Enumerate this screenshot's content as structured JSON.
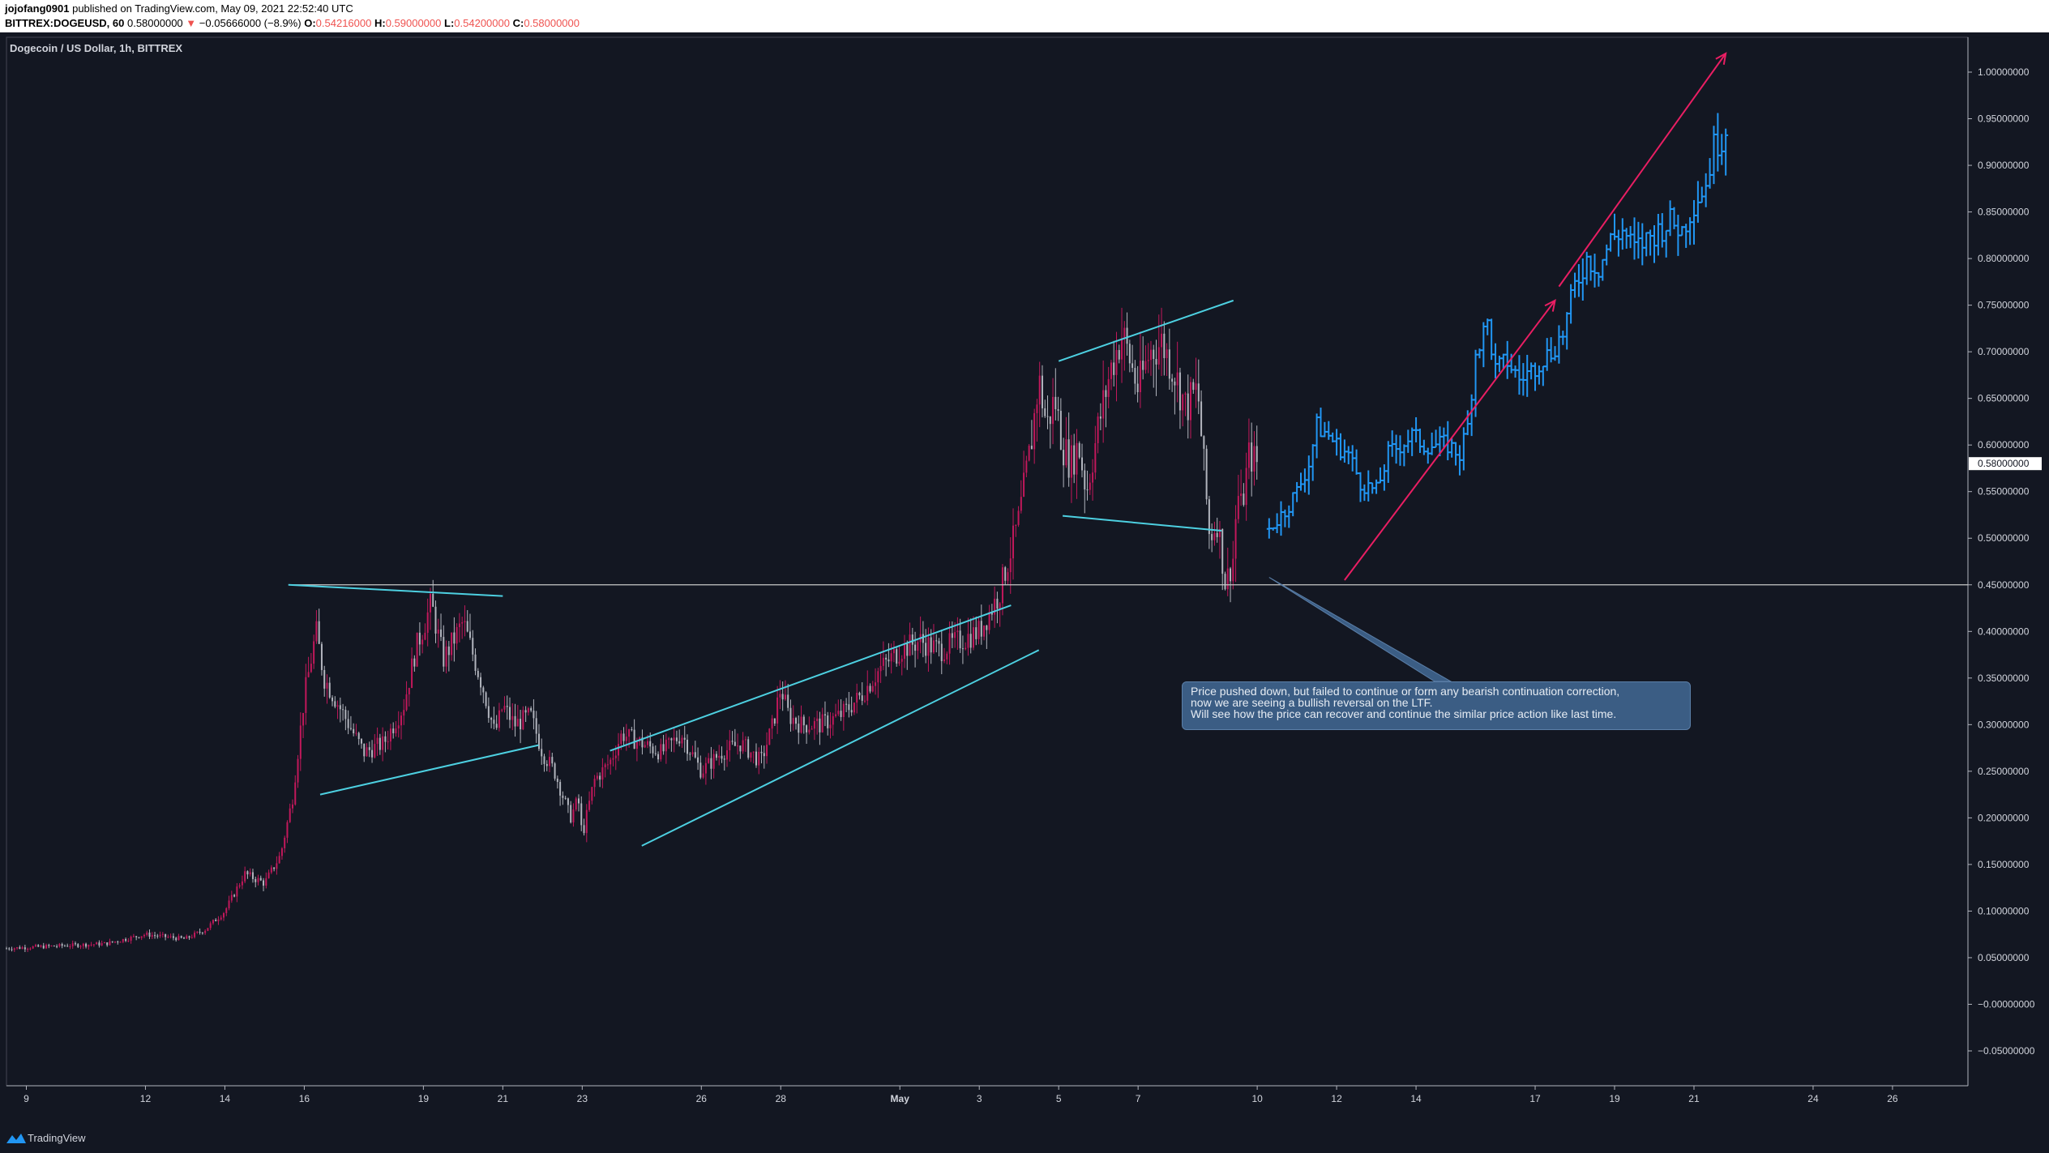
{
  "header": {
    "publisher": "jojofang0901",
    "published_text": "published on TradingView.com, May 09, 2021 22:52:40 UTC",
    "symbol": "BITTREX:DOGEUSD, 60",
    "last": "0.58000000",
    "change_arrow": "▼",
    "change": "−0.05666000 (−8.9%)",
    "o_label": "O:",
    "o_val": "0.54216000",
    "h_label": "H:",
    "h_val": "0.59000000",
    "l_label": "L:",
    "l_val": "0.54200000",
    "c_label": "C:",
    "c_val": "0.58000000"
  },
  "chart_title": "Dogecoin / US Dollar, 1h, BITTREX",
  "footer": {
    "brand": "TradingView",
    "logo_icon": "tradingview-logo-icon"
  },
  "colors": {
    "background": "#131722",
    "bull_candle": "#c2185b",
    "bear_candle": "#b2b5be",
    "projection": "#2196f3",
    "trendline": "#4dd0e1",
    "arrow": "#e91e63",
    "support_line": "#c8c8c8",
    "note_bg": "#3b5d84"
  },
  "annotation": {
    "lines": [
      "Price pushed down, but failed to continue or form any bearish continuation correction,",
      "now we are seeing a bullish reversal on the LTF.",
      "Will see how the price can recover and continue the similar price action like last time."
    ]
  },
  "chart_data": {
    "type": "line",
    "title": "Dogecoin / US Dollar, 1h, BITTREX",
    "y_ticks": [
      "1.00000000",
      "0.95000000",
      "0.90000000",
      "0.85000000",
      "0.80000000",
      "0.75000000",
      "0.70000000",
      "0.65000000",
      "0.60000000",
      "0.55000000",
      "0.50000000",
      "0.45000000",
      "0.40000000",
      "0.35000000",
      "0.30000000",
      "0.25000000",
      "0.20000000",
      "0.15000000",
      "0.10000000",
      "0.05000000",
      "−0.00000000",
      "−0.05000000"
    ],
    "ylim": [
      -0.07,
      1.02
    ],
    "x_ticks": [
      "9",
      "12",
      "14",
      "16",
      "19",
      "21",
      "23",
      "26",
      "28",
      "May",
      "3",
      "5",
      "7",
      "10",
      "12",
      "14",
      "17",
      "19",
      "21",
      "24",
      "26"
    ],
    "x_tick_days": [
      -22,
      -19,
      -17,
      -15,
      -12,
      -10,
      -8,
      -5,
      -3,
      0,
      2,
      4,
      6,
      9,
      11,
      13,
      16,
      18,
      20,
      23,
      25
    ],
    "xlim": [
      -22.5,
      26.9
    ],
    "current_price_label": "0.58000000",
    "current_price": 0.58,
    "support_level": 0.45,
    "series": [
      {
        "name": "",
        "x": [
          -22.5,
          -20,
          -19,
          -18,
          -17.5,
          -17,
          -16.5,
          -16,
          -15.6,
          -15.3,
          -15,
          -14.7,
          -14.5,
          -14,
          -13.5,
          -13,
          -12.5,
          -12.2,
          -11.8,
          -11.5,
          -11,
          -10.5,
          -10.2,
          -10,
          -9.7,
          -9.3,
          -9,
          -8.7,
          -8.3,
          -8.1,
          -8,
          -7.7,
          -7.3,
          -7,
          -6.5,
          -6,
          -5.5,
          -5,
          -4.5,
          -4,
          -3.5,
          -3.2,
          -3,
          -2.8,
          -2.5,
          -2,
          -1.5,
          -1,
          -0.5,
          0,
          0.5,
          1,
          1.5,
          2,
          2.5,
          3,
          3.3,
          3.5,
          3.7,
          3.9,
          4.1,
          4.3,
          4.5,
          4.7,
          5,
          5.3,
          5.6,
          6,
          6.3,
          6.6,
          6.9,
          7.2,
          7.5,
          7.8,
          8,
          8.2,
          8.4,
          8.5,
          8.6,
          8.8,
          9
        ],
        "values": [
          0.06,
          0.065,
          0.075,
          0.07,
          0.08,
          0.1,
          0.14,
          0.13,
          0.16,
          0.22,
          0.33,
          0.4,
          0.35,
          0.31,
          0.27,
          0.28,
          0.32,
          0.38,
          0.43,
          0.37,
          0.41,
          0.34,
          0.29,
          0.32,
          0.3,
          0.31,
          0.27,
          0.25,
          0.2,
          0.22,
          0.18,
          0.24,
          0.26,
          0.29,
          0.28,
          0.27,
          0.29,
          0.25,
          0.27,
          0.28,
          0.26,
          0.3,
          0.34,
          0.31,
          0.3,
          0.3,
          0.31,
          0.33,
          0.36,
          0.38,
          0.39,
          0.38,
          0.39,
          0.4,
          0.44,
          0.52,
          0.6,
          0.67,
          0.62,
          0.65,
          0.6,
          0.58,
          0.6,
          0.55,
          0.62,
          0.68,
          0.72,
          0.66,
          0.7,
          0.71,
          0.68,
          0.64,
          0.66,
          0.5,
          0.52,
          0.45,
          0.48,
          0.55,
          0.53,
          0.59,
          0.58
        ]
      },
      {
        "name": "",
        "x": [
          9.3,
          9.7,
          10,
          10.3,
          10.5,
          10.8,
          11,
          11.3,
          11.6,
          12,
          12.3,
          12.6,
          12.9,
          13.2,
          13.5,
          13.8,
          14.1,
          14.3,
          14.5,
          14.8,
          15,
          15.3,
          15.6,
          15.9,
          16.1,
          16.4,
          16.7,
          17,
          17.3,
          17.6,
          17.9,
          18.2,
          18.5,
          18.8,
          19.1,
          19.4,
          19.7,
          20,
          20.3,
          20.5,
          20.7,
          20.9
        ],
        "values": [
          0.51,
          0.53,
          0.55,
          0.58,
          0.62,
          0.61,
          0.6,
          0.59,
          0.56,
          0.55,
          0.59,
          0.6,
          0.61,
          0.6,
          0.6,
          0.6,
          0.59,
          0.62,
          0.7,
          0.73,
          0.68,
          0.69,
          0.67,
          0.68,
          0.69,
          0.7,
          0.72,
          0.77,
          0.8,
          0.79,
          0.82,
          0.83,
          0.81,
          0.82,
          0.83,
          0.84,
          0.83,
          0.86,
          0.88,
          0.92,
          0.93,
          0.95
        ]
      }
    ],
    "annotations": {
      "support_line": [
        [
          -15.4,
          0.45
        ],
        [
          26.9,
          0.45
        ]
      ],
      "trend_lines": [
        [
          [
            -15.4,
            0.45
          ],
          [
            -10,
            0.438
          ]
        ],
        [
          [
            -14.6,
            0.225
          ],
          [
            -9.1,
            0.278
          ]
        ],
        [
          [
            -7.3,
            0.272
          ],
          [
            2.8,
            0.428
          ]
        ],
        [
          [
            -6.5,
            0.17
          ],
          [
            3.5,
            0.38
          ]
        ],
        [
          [
            4,
            0.69
          ],
          [
            8.4,
            0.755
          ]
        ],
        [
          [
            4.1,
            0.524
          ],
          [
            8.1,
            0.508
          ]
        ]
      ],
      "arrows": [
        [
          [
            11.2,
            0.455
          ],
          [
            16.5,
            0.755
          ]
        ],
        [
          [
            16.6,
            0.77
          ],
          [
            20.8,
            1.02
          ]
        ]
      ],
      "callout_from": [
        9.3,
        0.458
      ]
    },
    "grid": false,
    "legend": "none"
  }
}
